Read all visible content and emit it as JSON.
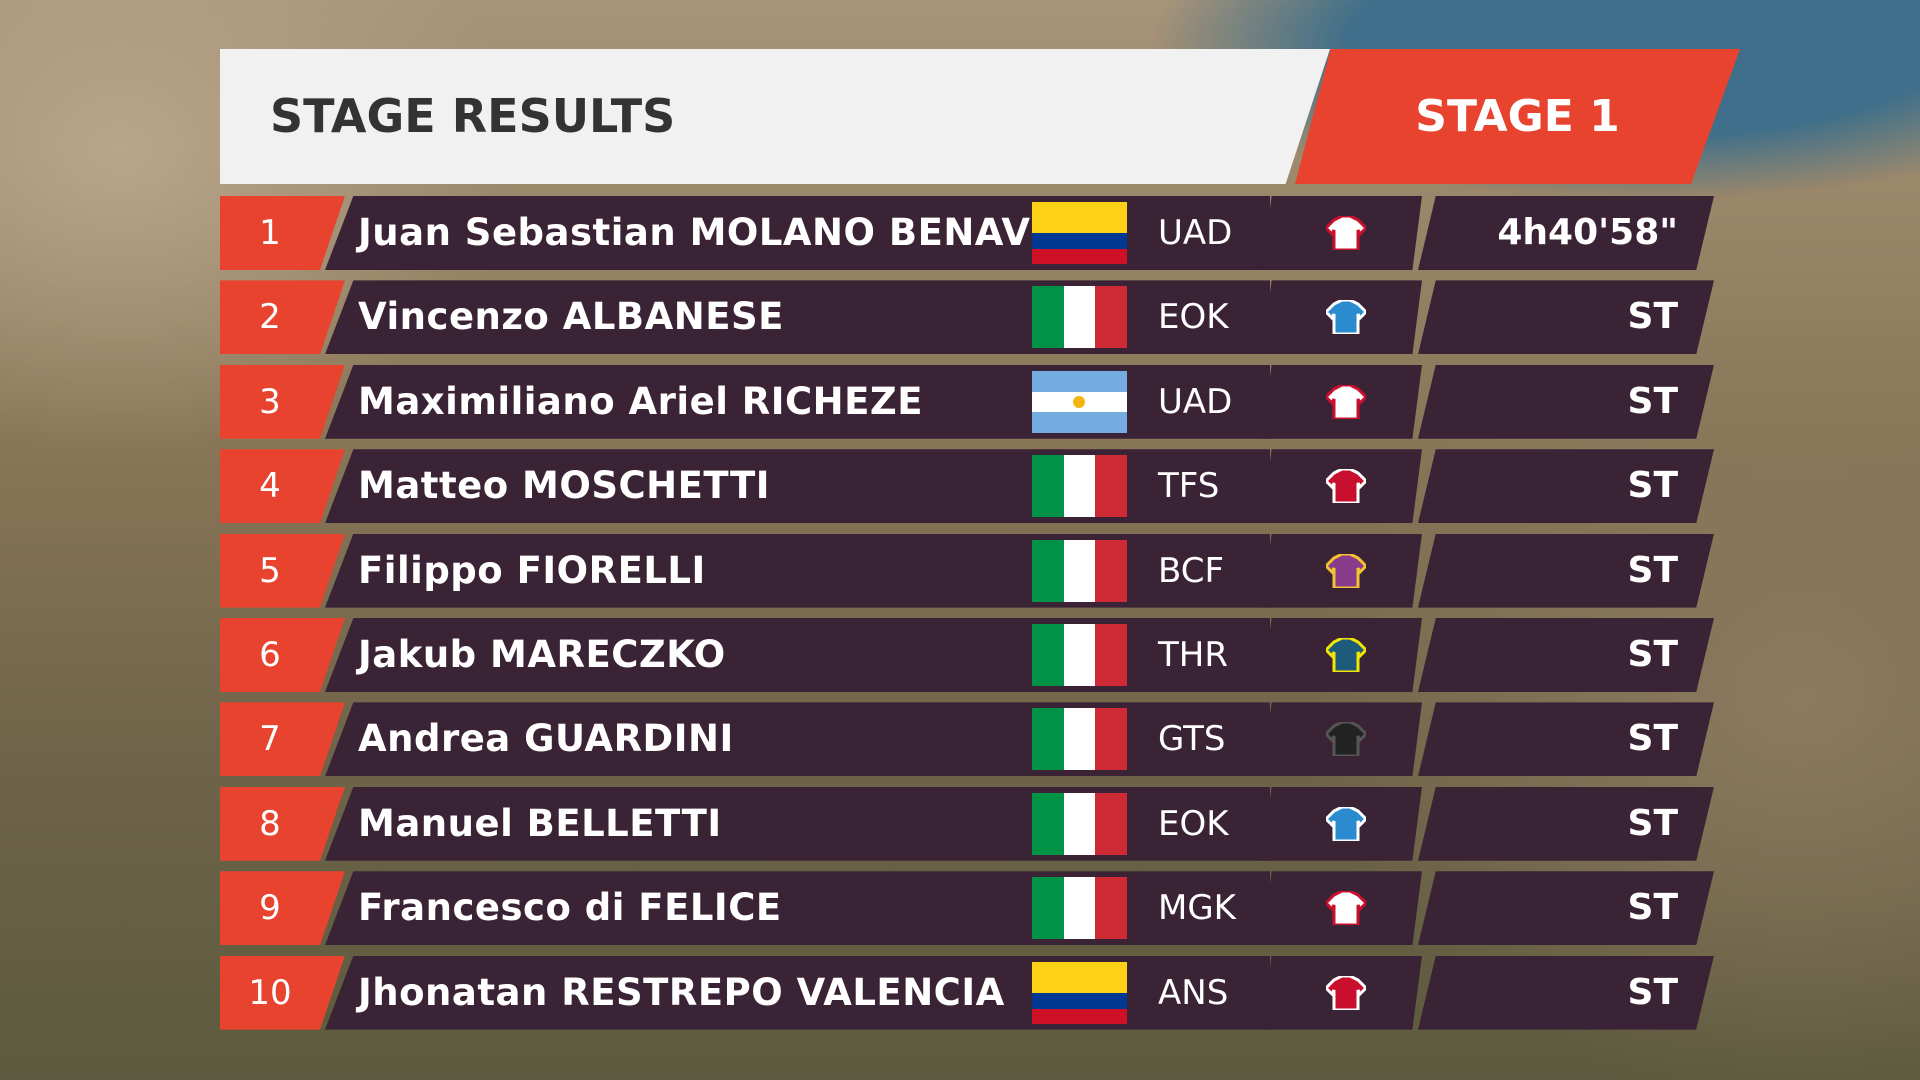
{
  "header": {
    "title": "STAGE RESULTS",
    "stage": "STAGE 1"
  },
  "table": {
    "rows": [
      {
        "rank": 1,
        "rider": "Juan Sebastian MOLANO BENAVIDES",
        "team": "UAD",
        "time": "4h40'58\""
      },
      {
        "rank": 2,
        "rider": "Vincenzo ALBANESE",
        "team": "EOK",
        "time": "ST"
      },
      {
        "rank": 3,
        "rider": "Maximiliano Ariel RICHEZE",
        "team": "UAD",
        "time": "ST"
      },
      {
        "rank": 4,
        "rider": "Matteo MOSCHETTI",
        "team": "TFS",
        "time": "ST"
      },
      {
        "rank": 5,
        "rider": "Filippo FIORELLI",
        "team": "BCF",
        "time": "ST"
      },
      {
        "rank": 6,
        "rider": "Jakub MARECZKO",
        "team": "THR",
        "time": "ST"
      },
      {
        "rank": 7,
        "rider": "Andrea GUARDINI",
        "team": "GTS",
        "time": "ST"
      },
      {
        "rank": 8,
        "rider": "Manuel BELLETTI",
        "team": "EOK",
        "time": "ST"
      },
      {
        "rank": 9,
        "rider": "Francesco di FELICE",
        "team": "MGK",
        "time": "ST"
      },
      {
        "rank": 10,
        "rider": "Jhonatan RESTREPO VALENCIA",
        "team": "ANS",
        "time": "ST"
      }
    ]
  }
}
